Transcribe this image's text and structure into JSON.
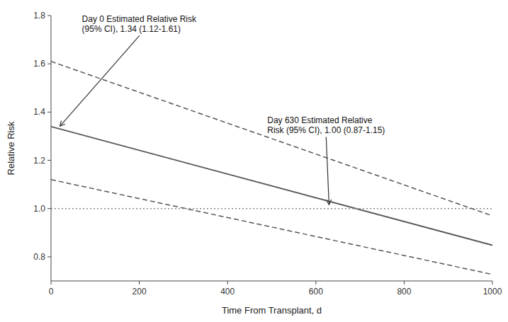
{
  "chart_data": {
    "type": "line",
    "xlabel": "Time From Transplant, d",
    "ylabel": "Relative Risk",
    "xlim": [
      0,
      1000
    ],
    "ylim": [
      0.7,
      1.8
    ],
    "xticks": [
      0,
      200,
      400,
      600,
      800,
      1000
    ],
    "yticks": [
      0.8,
      {
        "value": 1.0,
        "label": "1.0"
      },
      1.2,
      1.4,
      1.6,
      1.8
    ],
    "grid": false,
    "x": [
      0,
      1000
    ],
    "series": [
      {
        "color": "#555555",
        "line_style": "solid",
        "values": [
          1.34,
          0.848
        ]
      },
      {
        "color": "#555555",
        "line_style": "dashed",
        "values": [
          1.61,
          0.97
        ]
      },
      {
        "color": "#555555",
        "line_style": "dashed",
        "values": [
          1.12,
          0.727
        ]
      },
      {
        "color": "#888888",
        "line_style": "dotted",
        "values": [
          1.0,
          1.0
        ]
      }
    ],
    "annotations": [
      {
        "text": "Day 0 Estimated Relative Risk\n(95% CI), 1.34 (1.12-1.61)",
        "x": 18,
        "y": 1.337,
        "text_x": 70,
        "text_y": 1.72
      },
      {
        "text": "Day 630 Estimated Relative\nRisk (95% CI), 1.00 (0.87-1.15)",
        "x": 630,
        "y": 1.01,
        "text_x": 490,
        "text_y": 1.3
      }
    ]
  }
}
